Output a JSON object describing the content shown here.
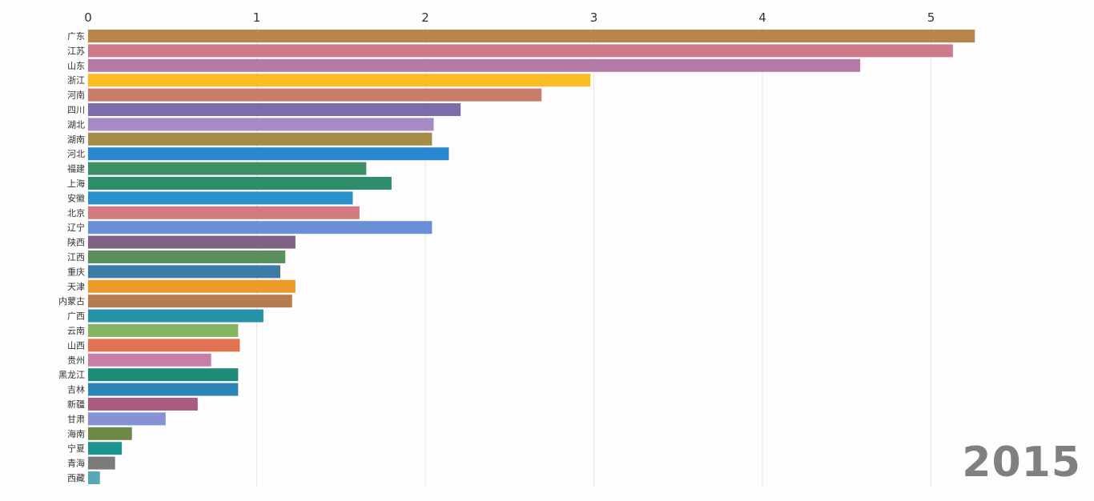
{
  "chart_data": {
    "type": "bar",
    "orientation": "horizontal",
    "title": "",
    "xlabel": "",
    "ylabel": "",
    "xlim": [
      0,
      5.5
    ],
    "ticks": [
      0,
      1,
      2,
      3,
      4,
      5
    ],
    "grid": true,
    "year": "2015",
    "bars": [
      {
        "name": "广东",
        "value": 5.26,
        "color": "#b8864b"
      },
      {
        "name": "江苏",
        "value": 5.13,
        "color": "#cc7a8c"
      },
      {
        "name": "山东",
        "value": 4.58,
        "color": "#b37aa6"
      },
      {
        "name": "浙江",
        "value": 2.98,
        "color": "#f8bd25"
      },
      {
        "name": "河南",
        "value": 2.69,
        "color": "#c97c6a"
      },
      {
        "name": "四川",
        "value": 2.21,
        "color": "#7b6ea8"
      },
      {
        "name": "湖北",
        "value": 2.05,
        "color": "#a68ac4"
      },
      {
        "name": "湖南",
        "value": 2.04,
        "color": "#a38c48"
      },
      {
        "name": "河北",
        "value": 2.14,
        "color": "#2a88d0"
      },
      {
        "name": "福建",
        "value": 1.65,
        "color": "#3d8f64"
      },
      {
        "name": "上海",
        "value": 1.8,
        "color": "#2d8c6a"
      },
      {
        "name": "安徽",
        "value": 1.57,
        "color": "#2a90c8"
      },
      {
        "name": "北京",
        "value": 1.61,
        "color": "#d17a80"
      },
      {
        "name": "辽宁",
        "value": 2.04,
        "color": "#6a8fd4"
      },
      {
        "name": "陕西",
        "value": 1.23,
        "color": "#7e6385"
      },
      {
        "name": "江西",
        "value": 1.17,
        "color": "#5a8f60"
      },
      {
        "name": "重庆",
        "value": 1.14,
        "color": "#3e7aa8"
      },
      {
        "name": "天津",
        "value": 1.23,
        "color": "#ee9a2a"
      },
      {
        "name": "内蒙古",
        "value": 1.21,
        "color": "#b57c4e"
      },
      {
        "name": "广西",
        "value": 1.04,
        "color": "#2592a8"
      },
      {
        "name": "云南",
        "value": 0.89,
        "color": "#82b660"
      },
      {
        "name": "山西",
        "value": 0.9,
        "color": "#e27350"
      },
      {
        "name": "贵州",
        "value": 0.73,
        "color": "#c87ea6"
      },
      {
        "name": "黑龙江",
        "value": 0.89,
        "color": "#1e8a78"
      },
      {
        "name": "吉林",
        "value": 0.89,
        "color": "#2a86b8"
      },
      {
        "name": "新疆",
        "value": 0.65,
        "color": "#ab5a82"
      },
      {
        "name": "甘肃",
        "value": 0.46,
        "color": "#8592d4"
      },
      {
        "name": "海南",
        "value": 0.26,
        "color": "#6c8844"
      },
      {
        "name": "宁夏",
        "value": 0.2,
        "color": "#1d9490"
      },
      {
        "name": "青海",
        "value": 0.16,
        "color": "#7b7b7b"
      },
      {
        "name": "西藏",
        "value": 0.07,
        "color": "#56a8b8"
      }
    ]
  }
}
